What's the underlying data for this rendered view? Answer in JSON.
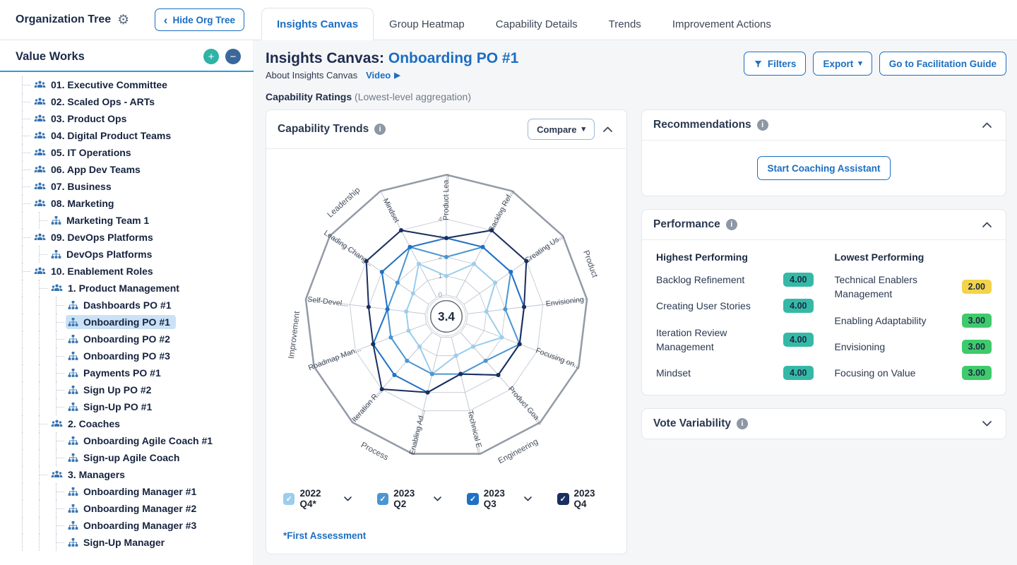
{
  "icons": {
    "gear": "⚙",
    "chevron_left": "‹",
    "play": "▶",
    "caret_down": "▾",
    "plus": "+",
    "minus": "−",
    "check": "✓",
    "info": "i"
  },
  "topbar": {
    "org_tree_title": "Organization Tree",
    "hide_button": "Hide Org Tree",
    "tabs": [
      {
        "label": "Insights Canvas",
        "active": true
      },
      {
        "label": "Group Heatmap",
        "active": false
      },
      {
        "label": "Capability Details",
        "active": false
      },
      {
        "label": "Trends",
        "active": false
      },
      {
        "label": "Improvement Actions",
        "active": false
      }
    ]
  },
  "sidebar": {
    "panel_title": "Value Works",
    "tree": [
      {
        "label": "01. Executive Committee",
        "level": 0,
        "icon": "group"
      },
      {
        "label": "02. Scaled Ops - ARTs",
        "level": 0,
        "icon": "group"
      },
      {
        "label": "03. Product Ops",
        "level": 0,
        "icon": "group"
      },
      {
        "label": "04. Digital Product Teams",
        "level": 0,
        "icon": "group"
      },
      {
        "label": "05. IT Operations",
        "level": 0,
        "icon": "group"
      },
      {
        "label": "06. App Dev Teams",
        "level": 0,
        "icon": "group"
      },
      {
        "label": "07. Business",
        "level": 0,
        "icon": "group"
      },
      {
        "label": "08. Marketing",
        "level": 0,
        "icon": "group"
      },
      {
        "label": "Marketing Team 1",
        "level": 1,
        "icon": "sitemap"
      },
      {
        "label": "09. DevOps Platforms",
        "level": 0,
        "icon": "group"
      },
      {
        "label": "DevOps Platforms",
        "level": 1,
        "icon": "sitemap"
      },
      {
        "label": "10. Enablement Roles",
        "level": 0,
        "icon": "group"
      },
      {
        "label": "1. Product Management",
        "level": 1,
        "icon": "group"
      },
      {
        "label": "Dashboards PO #1",
        "level": 2,
        "icon": "sitemap"
      },
      {
        "label": "Onboarding PO #1",
        "level": 2,
        "icon": "sitemap",
        "selected": true
      },
      {
        "label": "Onboarding PO #2",
        "level": 2,
        "icon": "sitemap"
      },
      {
        "label": "Onboarding PO #3",
        "level": 2,
        "icon": "sitemap"
      },
      {
        "label": "Payments PO #1",
        "level": 2,
        "icon": "sitemap"
      },
      {
        "label": "Sign Up PO #2",
        "level": 2,
        "icon": "sitemap"
      },
      {
        "label": "Sign-Up PO #1",
        "level": 2,
        "icon": "sitemap"
      },
      {
        "label": "2. Coaches",
        "level": 1,
        "icon": "group"
      },
      {
        "label": "Onboarding Agile Coach #1",
        "level": 2,
        "icon": "sitemap"
      },
      {
        "label": "Sign-up Agile Coach",
        "level": 2,
        "icon": "sitemap"
      },
      {
        "label": "3. Managers",
        "level": 1,
        "icon": "group"
      },
      {
        "label": "Onboarding Manager #1",
        "level": 2,
        "icon": "sitemap"
      },
      {
        "label": "Onboarding Manager #2",
        "level": 2,
        "icon": "sitemap"
      },
      {
        "label": "Onboarding Manager #3",
        "level": 2,
        "icon": "sitemap"
      },
      {
        "label": "Sign-Up Manager",
        "level": 2,
        "icon": "sitemap"
      }
    ]
  },
  "main": {
    "title_prefix": "Insights Canvas:",
    "title_entity": "Onboarding PO #1",
    "about_label": "About Insights Canvas",
    "video_label": "Video",
    "filters_label": "Filters",
    "export_label": "Export",
    "guide_label": "Go to Facilitation Guide",
    "section_label": "Capability Ratings",
    "section_sublabel": "(Lowest-level aggregation)",
    "trends_card": {
      "title": "Capability Trends",
      "compare_label": "Compare",
      "footnote": "*First Assessment",
      "legend": [
        {
          "label": "2022 Q4*",
          "color": "#9ccdec",
          "has_dropdown": true
        },
        {
          "label": "2023 Q2",
          "color": "#4b96d2",
          "has_dropdown": true
        },
        {
          "label": "2023 Q3",
          "color": "#1f71c4",
          "has_dropdown": true
        },
        {
          "label": "2023 Q4",
          "color": "#1b2f5e",
          "has_dropdown": false
        }
      ]
    },
    "recommendations": {
      "title": "Recommendations",
      "button": "Start Coaching Assistant"
    },
    "performance": {
      "title": "Performance",
      "highest": {
        "header": "Highest Performing",
        "items": [
          {
            "label": "Backlog Refinement",
            "value": "4.00",
            "color": "#35b9a6"
          },
          {
            "label": "Creating User Stories",
            "value": "4.00",
            "color": "#35b9a6"
          },
          {
            "label": "Iteration Review Management",
            "value": "4.00",
            "color": "#35b9a6"
          },
          {
            "label": "Mindset",
            "value": "4.00",
            "color": "#35b9a6"
          }
        ]
      },
      "lowest": {
        "header": "Lowest Performing",
        "items": [
          {
            "label": "Technical Enablers Management",
            "value": "2.00",
            "color": "#f2d349"
          },
          {
            "label": "Enabling Adaptability",
            "value": "3.00",
            "color": "#3fca6b"
          },
          {
            "label": "Envisioning",
            "value": "3.00",
            "color": "#3fca6b"
          },
          {
            "label": "Focusing on Value",
            "value": "3.00",
            "color": "#3fca6b"
          }
        ]
      }
    },
    "vote_variability": {
      "title": "Vote Variability"
    }
  },
  "chart_data": {
    "type": "radar",
    "title": "Capability Trends",
    "center_value": "3.4",
    "scale": {
      "min": 0,
      "max": 4,
      "ticks": [
        0,
        1,
        2,
        3,
        4
      ]
    },
    "axes": [
      "Product Lea...",
      "Backlog Ref...",
      "Creating Us...",
      "Envisioning",
      "Focusing on...",
      "Product Goa...",
      "Technical E...",
      "Enabling Ad...",
      "Iteration R...",
      "Roadmap Man...",
      "Self-Devel...",
      "Leading Chang...",
      "Mindset"
    ],
    "group_labels": [
      {
        "label": "Product",
        "angle": 70,
        "rotation": 70
      },
      {
        "label": "Engineering",
        "angle": 152,
        "rotation": -28
      },
      {
        "label": "Process",
        "angle": 208,
        "rotation": 28
      },
      {
        "label": "Improvement",
        "angle": 263,
        "rotation": -83
      },
      {
        "label": "Leadership",
        "angle": 318,
        "rotation": -42
      }
    ],
    "series": [
      {
        "name": "2022 Q4*",
        "color": "#9ccdec",
        "values": [
          1,
          2,
          2,
          1,
          2,
          1,
          1,
          2,
          1,
          1,
          1,
          1,
          2
        ]
      },
      {
        "name": "2023 Q2",
        "color": "#4b96d2",
        "values": [
          2,
          3,
          3,
          2,
          3,
          2,
          2,
          2,
          2,
          2,
          2,
          2,
          3
        ]
      },
      {
        "name": "2023 Q3",
        "color": "#1f71c4",
        "values": [
          3,
          3,
          3,
          3,
          3,
          3,
          2,
          3,
          3,
          3,
          2,
          3,
          3
        ]
      },
      {
        "name": "2023 Q4",
        "color": "#1b2f5e",
        "values": [
          3,
          4,
          4,
          3,
          3,
          3,
          2,
          3,
          4,
          3,
          3,
          4,
          4
        ]
      }
    ]
  }
}
